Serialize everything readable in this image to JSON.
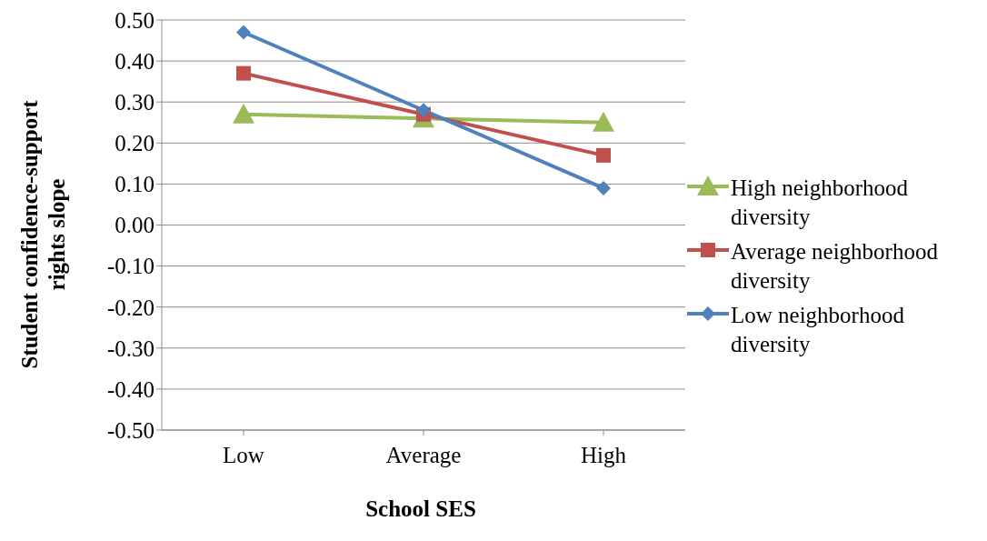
{
  "chart_data": {
    "type": "line",
    "xlabel": "School SES",
    "ylabel": "Student confidence-support rights slope",
    "categories": [
      "Low",
      "Average",
      "High"
    ],
    "series": [
      {
        "name": "High neighborhood diversity",
        "color": "#9bbb59",
        "marker": "triangle",
        "values": [
          0.27,
          0.26,
          0.25
        ]
      },
      {
        "name": "Average neighborhood diversity",
        "color": "#c0504d",
        "marker": "square",
        "values": [
          0.37,
          0.27,
          0.17
        ]
      },
      {
        "name": "Low neighborhood diversity",
        "color": "#4f81bd",
        "marker": "diamond",
        "values": [
          0.47,
          0.28,
          0.09
        ]
      }
    ],
    "ylim": [
      -0.5,
      0.5
    ],
    "yticks": [
      {
        "value": -0.5,
        "label": "-0.50"
      },
      {
        "value": -0.4,
        "label": "-0.40"
      },
      {
        "value": -0.3,
        "label": "-0.30"
      },
      {
        "value": -0.2,
        "label": "-0.20"
      },
      {
        "value": -0.1,
        "label": "-0.10"
      },
      {
        "value": 0,
        "label": "0.00"
      },
      {
        "value": 0.1,
        "label": "0.10"
      },
      {
        "value": 0.2,
        "label": "0.20"
      },
      {
        "value": 0.3,
        "label": "0.30"
      },
      {
        "value": 0.4,
        "label": "0.40"
      },
      {
        "value": 0.5,
        "label": "0.50"
      }
    ],
    "grid": "y",
    "legend": "right",
    "line_style": "solid"
  }
}
